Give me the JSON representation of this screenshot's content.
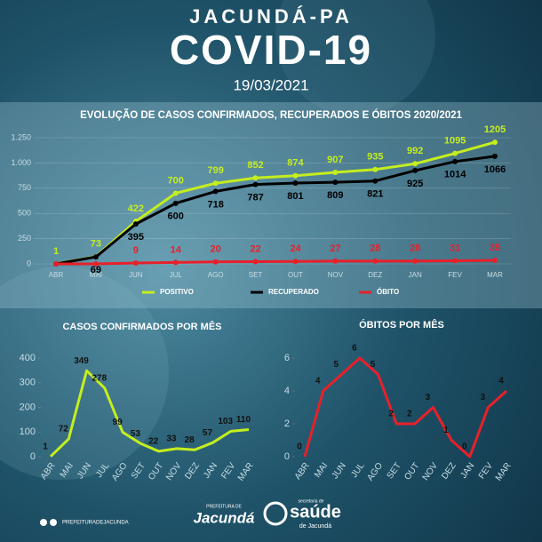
{
  "header": {
    "place": "JACUNDÁ-PA",
    "title": "COVID-19",
    "date": "19/03/2021"
  },
  "chart_data": [
    {
      "type": "line",
      "title": "EVOLUÇÃO DE CASOS CONFIRMADOS, RECUPERADOS E ÓBITOS  2020/2021",
      "categories": [
        "ABR",
        "MAI",
        "JUN",
        "JUL",
        "AGO",
        "SET",
        "OUT",
        "NOV",
        "DEZ",
        "JAN",
        "FEV",
        "MAR"
      ],
      "series": [
        {
          "name": "POSITIVO",
          "color": "#c4ee1e",
          "values": [
            1,
            73,
            422,
            700,
            799,
            852,
            874,
            907,
            935,
            992,
            1095,
            1205
          ]
        },
        {
          "name": "RECUPERADO",
          "color": "#000000",
          "values": [
            0,
            69,
            395,
            600,
            718,
            787,
            801,
            809,
            821,
            925,
            1014,
            1066
          ],
          "value_labels": [
            null,
            "69",
            "395",
            "600",
            "718",
            "787",
            "801",
            "809",
            "821",
            "925",
            "1014",
            "1066"
          ]
        },
        {
          "name": "ÓBITO",
          "color": "#e8202a",
          "values": [
            0,
            0,
            9,
            14,
            20,
            22,
            24,
            27,
            28,
            28,
            31,
            35
          ],
          "value_labels": [
            null,
            null,
            "9",
            "14",
            "20",
            "22",
            "24",
            "27",
            "28",
            "28",
            "31",
            "35"
          ]
        }
      ],
      "ylim": [
        0,
        1250
      ],
      "yticks": [
        0,
        250,
        500,
        750,
        {
          "value": 1000,
          "label": "1.000"
        },
        {
          "value": 1250,
          "label": "1.250"
        }
      ],
      "grid": true,
      "legend": "bottom"
    },
    {
      "type": "line",
      "title": "CASOS CONFIRMADOS  POR  MÊS",
      "categories": [
        "ABR",
        "MAI",
        "JUN",
        "JUL",
        "AGO",
        "SET",
        "OUT",
        "NOV",
        "DEZ",
        "JAN",
        "FEV",
        "MAR"
      ],
      "series": [
        {
          "name": "CASOS",
          "color": "#c4ee1e",
          "values": [
            1,
            72,
            349,
            278,
            99,
            53,
            22,
            33,
            28,
            57,
            103,
            110
          ]
        }
      ],
      "ylim": [
        0,
        400
      ],
      "yticks": [
        0,
        100,
        200,
        300,
        400
      ],
      "grid": false
    },
    {
      "type": "line",
      "title": "ÓBITOS  POR  MÊS",
      "categories": [
        "ABR",
        "MAI",
        "JUN",
        "JUL",
        "AGO",
        "SET",
        "OUT",
        "NOV",
        "DEZ",
        "JAN",
        "FEV",
        "MAR"
      ],
      "series": [
        {
          "name": "ÓBITOS",
          "color": "#e8202a",
          "values": [
            0,
            4,
            5,
            6,
            5,
            2,
            2,
            3,
            1,
            0,
            3,
            4
          ]
        }
      ],
      "ylim": [
        0,
        6
      ],
      "yticks": [
        0,
        2,
        4,
        6
      ],
      "grid": false
    }
  ],
  "footer": {
    "social": "PREFEITURADEJACUNDA",
    "logo1_top": "PREFEITURA DE",
    "logo1": "Jacundá",
    "logo2_top": "secretaria de",
    "logo2": "saúde",
    "logo2_bottom": "de Jacundá"
  }
}
